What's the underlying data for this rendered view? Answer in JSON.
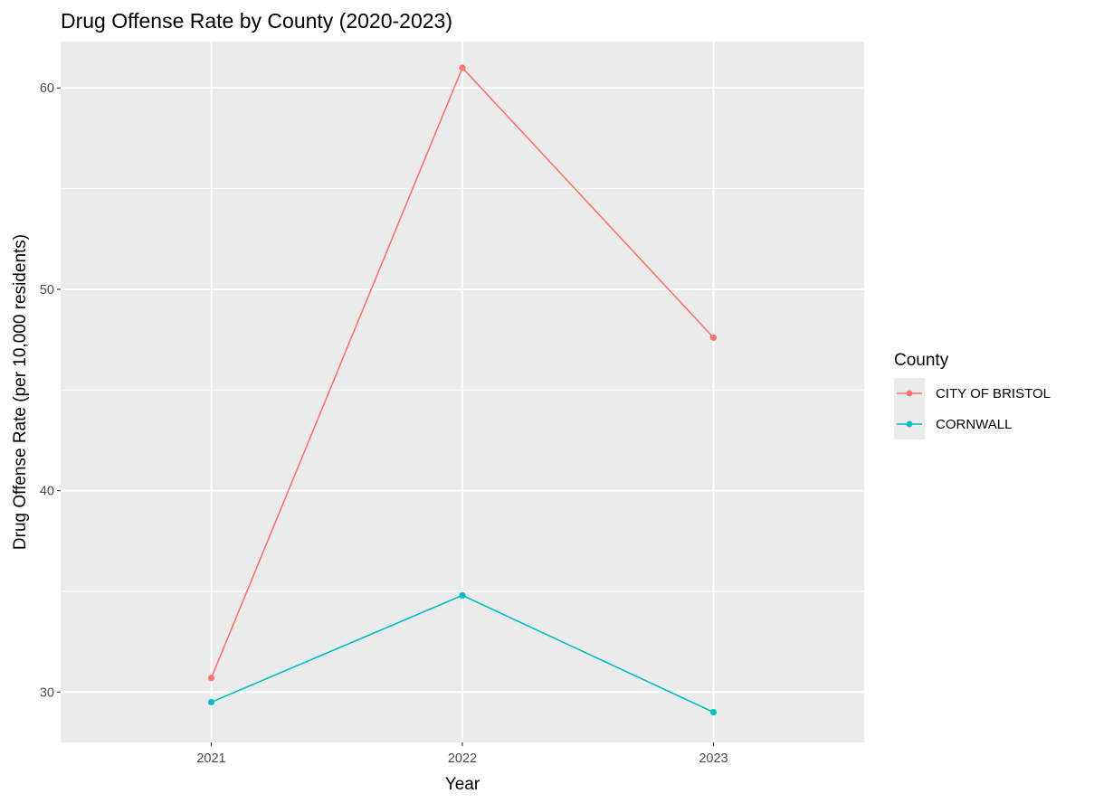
{
  "chart_data": {
    "type": "line",
    "title": "Drug Offense Rate by County (2020-2023)",
    "xlabel": "Year",
    "ylabel": "Drug Offense Rate (per 10,000 residents)",
    "x": [
      2021,
      2022,
      2023
    ],
    "x_tick_labels": [
      "2021",
      "2022",
      "2023"
    ],
    "xlim": [
      2020.4,
      2023.6
    ],
    "ylim": [
      27.5,
      62.3
    ],
    "y_ticks": [
      30,
      40,
      50,
      60
    ],
    "y_tick_labels": [
      "30",
      "40",
      "50",
      "60"
    ],
    "grid": true,
    "legend": {
      "title": "County",
      "position": "right"
    },
    "series": [
      {
        "name": "CITY OF BRISTOL",
        "color": "#f8766d",
        "values": [
          30.7,
          61.0,
          47.6
        ]
      },
      {
        "name": "CORNWALL",
        "color": "#00bfc4",
        "values": [
          29.5,
          34.8,
          29.0
        ]
      }
    ]
  }
}
